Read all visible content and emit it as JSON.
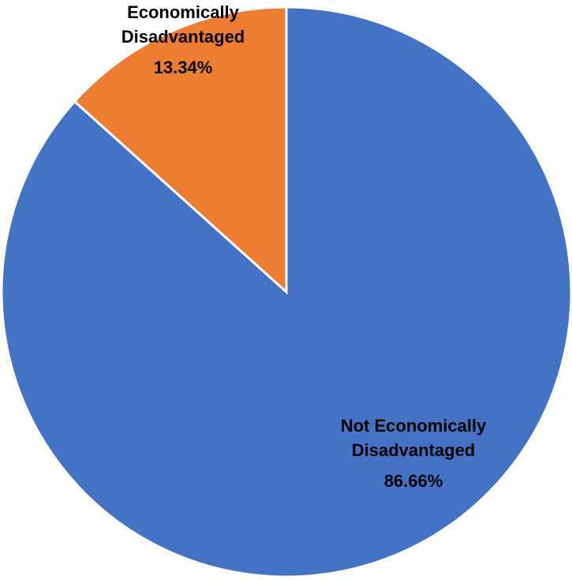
{
  "chart_data": {
    "type": "pie",
    "title": "",
    "start_angle_deg": 0,
    "direction": "clockwise",
    "slices": [
      {
        "label_lines": [
          "Not Economically",
          "Disadvantaged"
        ],
        "value": 86.66,
        "value_label": "86.66%",
        "color": "#4472C4"
      },
      {
        "label_lines": [
          "Economically",
          "Disadvantaged"
        ],
        "value": 13.34,
        "value_label": "13.34%",
        "color": "#ED7D31"
      }
    ],
    "legend": "none"
  }
}
